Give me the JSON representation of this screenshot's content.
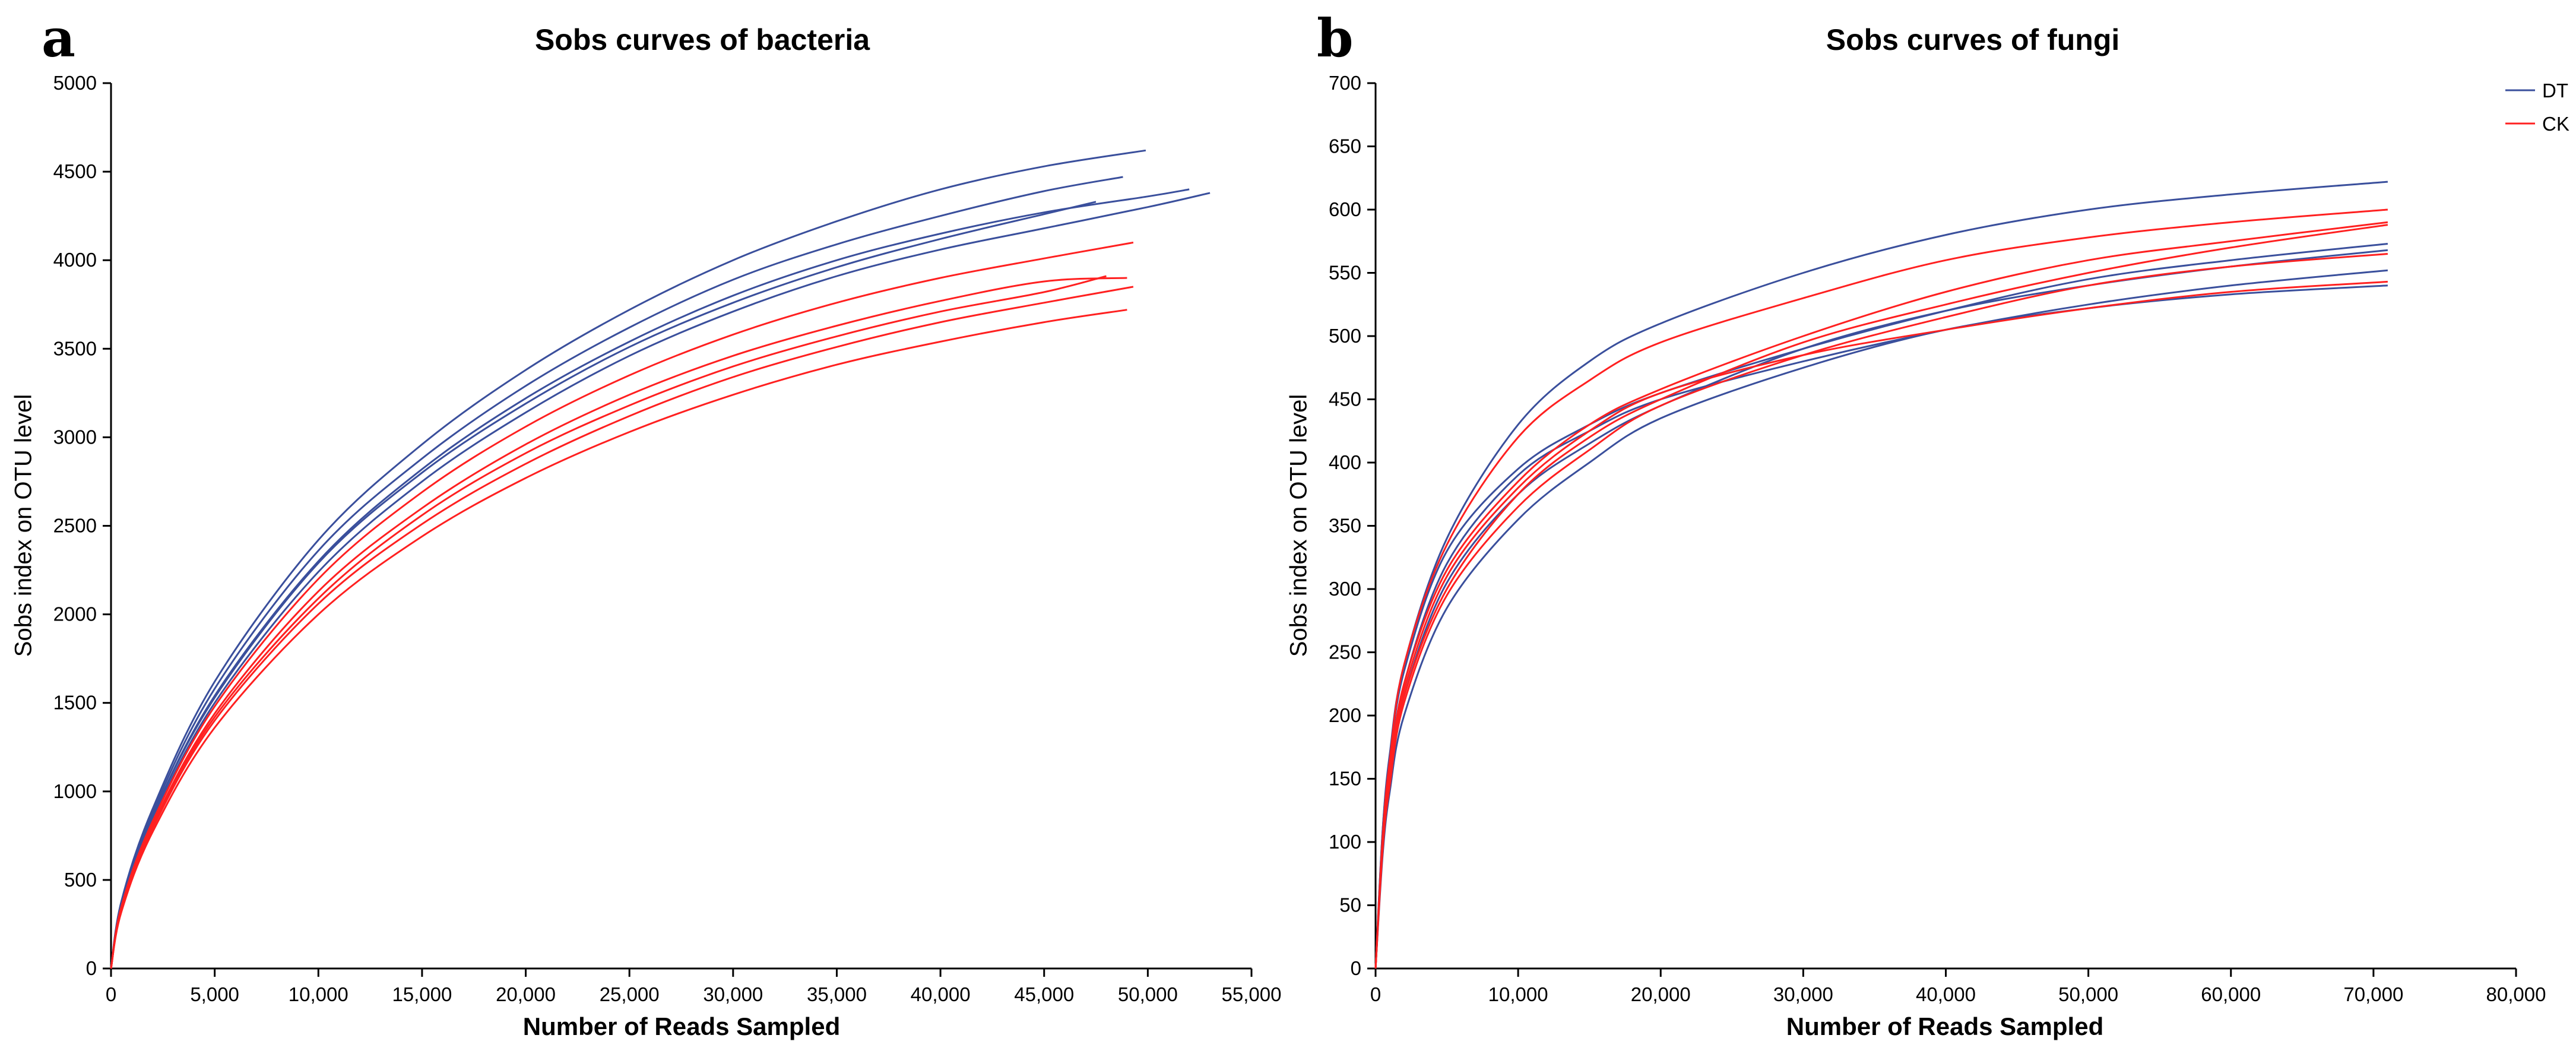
{
  "panels": [
    {
      "letter": "a"
    },
    {
      "letter": "b"
    }
  ],
  "colors": {
    "DT": "#3a4f9c",
    "CK": "#ff2020"
  },
  "chart_data": [
    {
      "type": "line",
      "title": "Sobs curves of bacteria",
      "xlabel": "Number of Reads Sampled",
      "ylabel": "Sobs index on OTU level",
      "xlim": [
        0,
        55000
      ],
      "ylim": [
        0,
        5000
      ],
      "xticks": [
        0,
        5000,
        10000,
        15000,
        20000,
        25000,
        30000,
        35000,
        40000,
        45000,
        50000,
        55000
      ],
      "xtick_labels": [
        "0",
        "5,000",
        "10,000",
        "15,000",
        "20,000",
        "25,000",
        "30,000",
        "35,000",
        "40,000",
        "45,000",
        "50,000",
        "55,000"
      ],
      "yticks": [
        0,
        500,
        1000,
        1500,
        2000,
        2500,
        3000,
        3500,
        4000,
        4500,
        5000
      ],
      "ytick_labels": [
        "0",
        "500",
        "1000",
        "1500",
        "2000",
        "2500",
        "3000",
        "3500",
        "4000",
        "4500",
        "5000"
      ],
      "series": [
        {
          "name": "DT",
          "x": [
            0,
            500,
            2000,
            5000,
            10000,
            15000,
            20000,
            25000,
            30000,
            35000,
            40000,
            45000,
            49900
          ],
          "y": [
            0,
            380,
            900,
            1620,
            2420,
            2960,
            3380,
            3720,
            4000,
            4220,
            4400,
            4530,
            4620
          ]
        },
        {
          "name": "DT",
          "x": [
            0,
            500,
            2000,
            5000,
            10000,
            15000,
            20000,
            25000,
            30000,
            35000,
            40000,
            45000,
            48800
          ],
          "y": [
            0,
            370,
            880,
            1580,
            2360,
            2880,
            3290,
            3620,
            3890,
            4090,
            4250,
            4390,
            4470
          ]
        },
        {
          "name": "DT",
          "x": [
            0,
            500,
            2000,
            5000,
            10000,
            15000,
            20000,
            25000,
            30000,
            35000,
            40000,
            45000,
            50000,
            52000
          ],
          "y": [
            0,
            360,
            860,
            1540,
            2300,
            2820,
            3220,
            3540,
            3800,
            4000,
            4150,
            4270,
            4360,
            4400
          ]
        },
        {
          "name": "DT",
          "x": [
            0,
            500,
            2000,
            5000,
            10000,
            15000,
            20000,
            25000,
            30000,
            35000,
            40000,
            45000,
            47500
          ],
          "y": [
            0,
            360,
            860,
            1530,
            2290,
            2800,
            3190,
            3510,
            3760,
            3960,
            4120,
            4260,
            4330
          ]
        },
        {
          "name": "DT",
          "x": [
            0,
            500,
            2000,
            5000,
            10000,
            15000,
            20000,
            25000,
            30000,
            35000,
            40000,
            45000,
            50000,
            53000
          ],
          "y": [
            0,
            350,
            840,
            1500,
            2240,
            2750,
            3140,
            3460,
            3710,
            3910,
            4060,
            4180,
            4300,
            4380
          ]
        },
        {
          "name": "CK",
          "x": [
            0,
            500,
            2000,
            5000,
            10000,
            15000,
            20000,
            25000,
            30000,
            35000,
            40000,
            45000,
            49300
          ],
          "y": [
            0,
            350,
            830,
            1480,
            2200,
            2690,
            3060,
            3350,
            3580,
            3760,
            3900,
            4010,
            4100
          ]
        },
        {
          "name": "CK",
          "x": [
            0,
            500,
            2000,
            5000,
            10000,
            15000,
            20000,
            25000,
            30000,
            35000,
            40000,
            45000,
            49000
          ],
          "y": [
            0,
            340,
            810,
            1440,
            2130,
            2600,
            2960,
            3240,
            3460,
            3630,
            3770,
            3880,
            3900
          ]
        },
        {
          "name": "CK",
          "x": [
            0,
            500,
            2000,
            5000,
            10000,
            15000,
            20000,
            25000,
            30000,
            35000,
            40000,
            45000,
            48000
          ],
          "y": [
            0,
            330,
            800,
            1420,
            2090,
            2560,
            2910,
            3180,
            3400,
            3570,
            3710,
            3820,
            3910
          ]
        },
        {
          "name": "CK",
          "x": [
            0,
            500,
            2000,
            5000,
            10000,
            15000,
            20000,
            25000,
            30000,
            35000,
            40000,
            45000,
            49300
          ],
          "y": [
            0,
            330,
            790,
            1400,
            2060,
            2510,
            2850,
            3120,
            3340,
            3510,
            3650,
            3760,
            3850
          ]
        },
        {
          "name": "CK",
          "x": [
            0,
            500,
            2000,
            5000,
            10000,
            15000,
            20000,
            25000,
            30000,
            35000,
            40000,
            45000,
            49000
          ],
          "y": [
            0,
            320,
            770,
            1360,
            2000,
            2440,
            2770,
            3030,
            3240,
            3410,
            3540,
            3650,
            3720
          ]
        }
      ]
    },
    {
      "type": "line",
      "title": "Sobs curves of fungi",
      "xlabel": "Number of Reads Sampled",
      "ylabel": "Sobs index on OTU level",
      "xlim": [
        0,
        80000
      ],
      "ylim": [
        0,
        700
      ],
      "xticks": [
        0,
        10000,
        20000,
        30000,
        40000,
        50000,
        60000,
        70000,
        80000
      ],
      "xtick_labels": [
        "0",
        "10,000",
        "20,000",
        "30,000",
        "40,000",
        "50,000",
        "60,000",
        "70,000",
        "80,000"
      ],
      "yticks": [
        0,
        50,
        100,
        150,
        200,
        250,
        300,
        350,
        400,
        450,
        500,
        550,
        600,
        650,
        700
      ],
      "ytick_labels": [
        "0",
        "50",
        "100",
        "150",
        "200",
        "250",
        "300",
        "350",
        "400",
        "450",
        "500",
        "550",
        "600",
        "650",
        "700"
      ],
      "legend": {
        "position": "top-right",
        "entries": [
          "DT",
          "CK"
        ]
      },
      "series": [
        {
          "name": "DT",
          "x": [
            0,
            500,
            1000,
            2000,
            5000,
            10000,
            15000,
            20000,
            30000,
            40000,
            50000,
            60000,
            71000
          ],
          "y": [
            0,
            110,
            170,
            240,
            340,
            430,
            480,
            510,
            550,
            580,
            600,
            612,
            622
          ]
        },
        {
          "name": "DT",
          "x": [
            0,
            500,
            1000,
            2000,
            5000,
            10000,
            15000,
            20000,
            30000,
            40000,
            50000,
            60000,
            71000
          ],
          "y": [
            0,
            110,
            165,
            235,
            330,
            395,
            430,
            455,
            490,
            520,
            545,
            560,
            573
          ]
        },
        {
          "name": "DT",
          "x": [
            0,
            500,
            1000,
            2000,
            5000,
            10000,
            15000,
            20000,
            30000,
            40000,
            50000,
            60000,
            71000
          ],
          "y": [
            0,
            100,
            150,
            215,
            305,
            375,
            415,
            445,
            490,
            520,
            540,
            555,
            568
          ]
        },
        {
          "name": "DT",
          "x": [
            0,
            500,
            1000,
            2000,
            5000,
            10000,
            15000,
            20000,
            30000,
            40000,
            50000,
            60000,
            71000
          ],
          "y": [
            0,
            100,
            155,
            225,
            320,
            390,
            425,
            450,
            480,
            505,
            525,
            540,
            552
          ]
        },
        {
          "name": "DT",
          "x": [
            0,
            500,
            1000,
            2000,
            5000,
            10000,
            15000,
            20000,
            30000,
            40000,
            50000,
            60000,
            71000
          ],
          "y": [
            0,
            90,
            140,
            200,
            285,
            355,
            400,
            435,
            475,
            505,
            522,
            533,
            540
          ]
        },
        {
          "name": "CK",
          "x": [
            0,
            500,
            1000,
            2000,
            5000,
            10000,
            15000,
            20000,
            30000,
            40000,
            50000,
            60000,
            71000
          ],
          "y": [
            0,
            105,
            165,
            240,
            335,
            420,
            465,
            495,
            530,
            560,
            578,
            590,
            600
          ]
        },
        {
          "name": "CK",
          "x": [
            0,
            500,
            1000,
            2000,
            5000,
            10000,
            15000,
            20000,
            30000,
            40000,
            50000,
            60000,
            71000
          ],
          "y": [
            0,
            100,
            155,
            225,
            315,
            385,
            430,
            458,
            500,
            535,
            560,
            575,
            590
          ]
        },
        {
          "name": "CK",
          "x": [
            0,
            500,
            1000,
            2000,
            5000,
            10000,
            15000,
            20000,
            30000,
            40000,
            50000,
            60000,
            71000
          ],
          "y": [
            0,
            95,
            150,
            215,
            300,
            375,
            420,
            450,
            495,
            525,
            550,
            570,
            588
          ]
        },
        {
          "name": "CK",
          "x": [
            0,
            500,
            1000,
            2000,
            5000,
            10000,
            15000,
            20000,
            30000,
            40000,
            50000,
            60000,
            71000
          ],
          "y": [
            0,
            95,
            145,
            210,
            295,
            365,
            410,
            445,
            485,
            515,
            540,
            555,
            565
          ]
        },
        {
          "name": "CK",
          "x": [
            0,
            500,
            1000,
            2000,
            5000,
            10000,
            15000,
            20000,
            30000,
            40000,
            50000,
            60000,
            71000
          ],
          "y": [
            0,
            100,
            155,
            220,
            310,
            380,
            425,
            455,
            485,
            505,
            522,
            535,
            543
          ]
        }
      ]
    }
  ]
}
